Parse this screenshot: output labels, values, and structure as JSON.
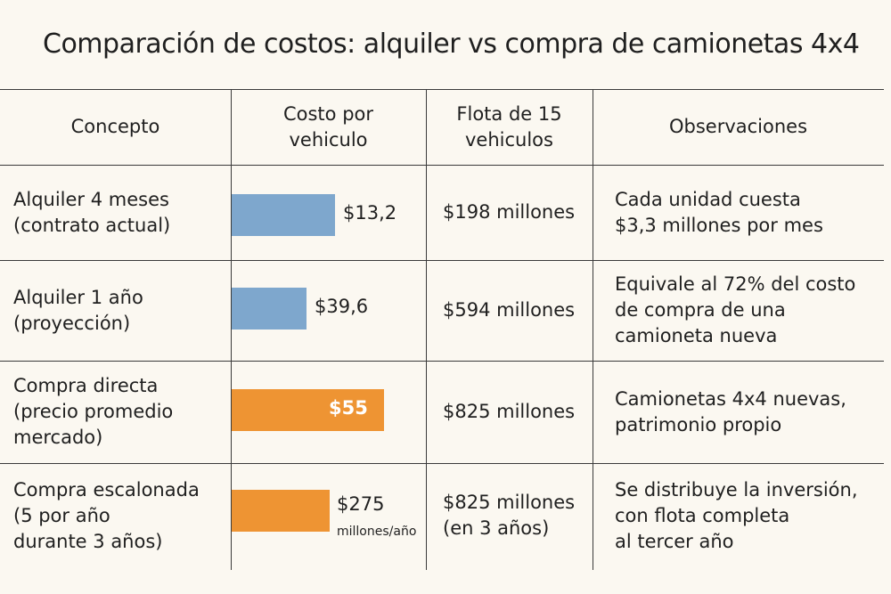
{
  "title": "Comparación de costos: alquiler vs compra de camionetas 4x4",
  "headers": {
    "concepto": "Concepto",
    "costo": "Costo por\nvehiculo",
    "flota": "Flota de 15\nvehiculos",
    "observaciones": "Observaciones"
  },
  "colors": {
    "alquiler": "#7ea7cd",
    "compra": "#ee9433",
    "grid": "#3a3a3a",
    "background": "#fbf8f1"
  },
  "rows": [
    {
      "concepto": "Alquiler 4 meses\n(contrato actual)",
      "flota": "$198 millones",
      "observaciones": "Cada unidad cuesta\n$3,3 millones por mes"
    },
    {
      "concepto": "Alquiler 1 año\n(proyección)",
      "flota": "$594 millones",
      "observaciones": "Equivale al 72% del costo\nde compra de una\ncamioneta nueva"
    },
    {
      "concepto": "Compra directa\n(precio promedio\nmercado)",
      "flota": "$825 millones",
      "observaciones": "Camionetas 4x4 nuevas,\npatrimonio propio"
    },
    {
      "concepto": "Compra escalonada\n(5 por año\ndurante 3 años)",
      "flota": "$825 millones\n(en 3 años)",
      "observaciones": "Se distribuye la inversión,\ncon flota completa\nal tercer año"
    }
  ],
  "chart_data": {
    "type": "bar",
    "orientation": "horizontal",
    "title": "Costo por vehiculo",
    "categories": [
      "Alquiler 4 meses",
      "Alquiler 1 año",
      "Compra directa",
      "Compra escalonada"
    ],
    "values": [
      13.2,
      39.6,
      55,
      275
    ],
    "labels": [
      "$13,2",
      "$39,6",
      "$55",
      "$275"
    ],
    "units": [
      "",
      "",
      "",
      "millones/año"
    ],
    "series_color_keys": [
      "alquiler",
      "alquiler",
      "compra",
      "compra"
    ],
    "label_positions": [
      "outside",
      "outside",
      "inside",
      "outside"
    ]
  }
}
